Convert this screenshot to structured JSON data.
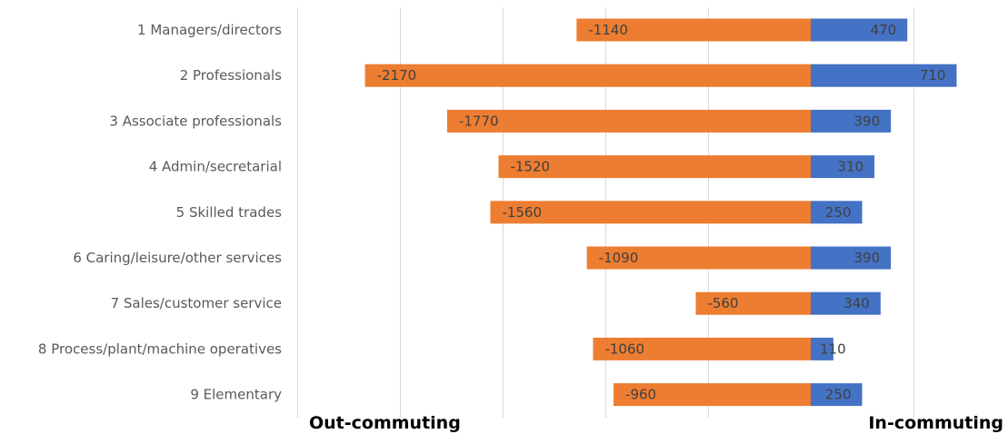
{
  "chart_data": {
    "type": "bar",
    "orientation": "horizontal",
    "stacked": true,
    "categories": [
      "1 Managers/directors",
      "2 Professionals",
      "3 Associate professionals",
      "4 Admin/secretarial",
      "5 Skilled trades",
      "6 Caring/leisure/other services",
      "7 Sales/customer service",
      "8 Process/plant/machine operatives",
      "9 Elementary"
    ],
    "series": [
      {
        "values": [
          -1140,
          -2170,
          -1770,
          -1520,
          -1560,
          -1090,
          -560,
          -1060,
          -960
        ],
        "color": "#ed7d31"
      },
      {
        "values": [
          470,
          710,
          390,
          310,
          250,
          390,
          340,
          110,
          250
        ],
        "color": "#4472c4"
      }
    ],
    "xlim": [
      -2500,
      1000
    ],
    "grid": true,
    "negative_side_label": "Out-commuting",
    "positive_side_label": "In-commuting",
    "title": "",
    "xlabel": "",
    "ylabel": ""
  }
}
